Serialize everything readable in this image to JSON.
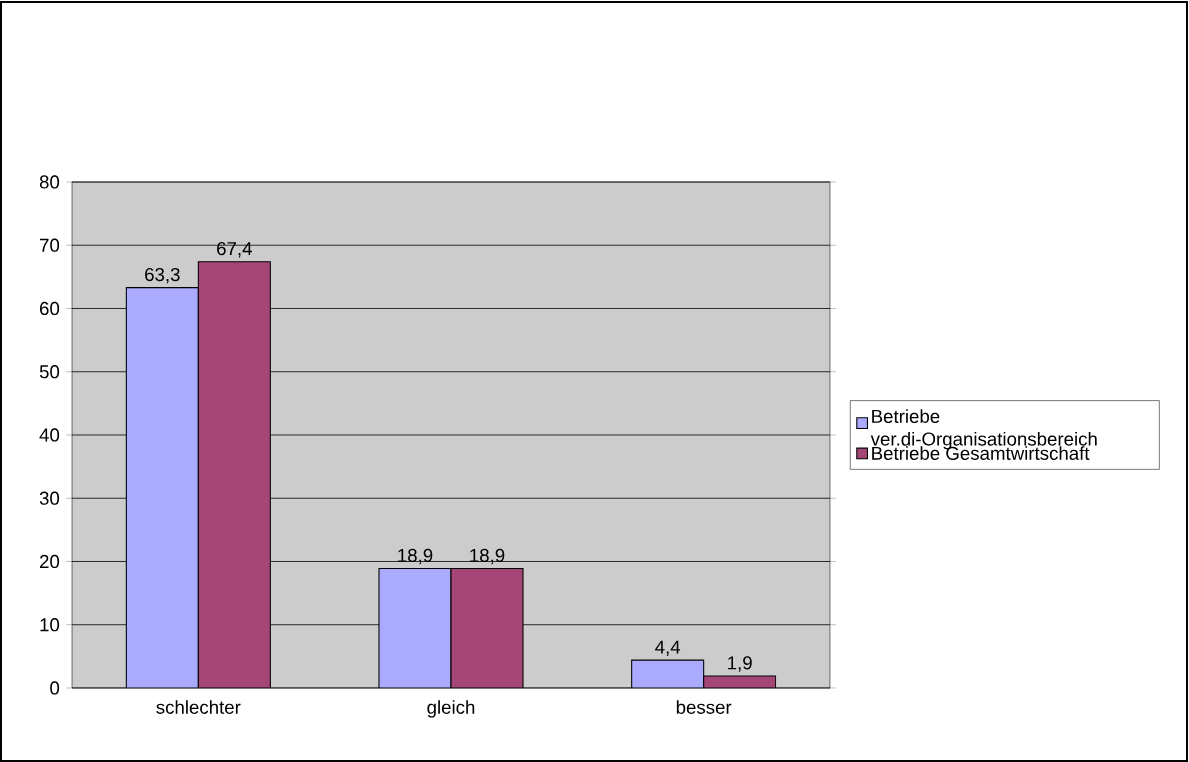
{
  "chart_data": {
    "type": "bar",
    "categories": [
      "schlechter",
      "gleich",
      "besser"
    ],
    "series": [
      {
        "name": "Betriebe ver.di-Organisationsbereich",
        "color": "#aaaaff",
        "values": [
          63.3,
          18.9,
          4.4
        ],
        "value_labels": [
          "63,3",
          "18,9",
          "4,4"
        ]
      },
      {
        "name": "Betriebe Gesamtwirtschaft",
        "color": "#a54776",
        "values": [
          67.4,
          18.9,
          1.9
        ],
        "value_labels": [
          "67,4",
          "18,9",
          "1,9"
        ]
      }
    ],
    "ylim": [
      0,
      80
    ],
    "yticks": [
      0,
      10,
      20,
      30,
      40,
      50,
      60,
      70,
      80
    ],
    "grid": "y",
    "legend": "right"
  }
}
